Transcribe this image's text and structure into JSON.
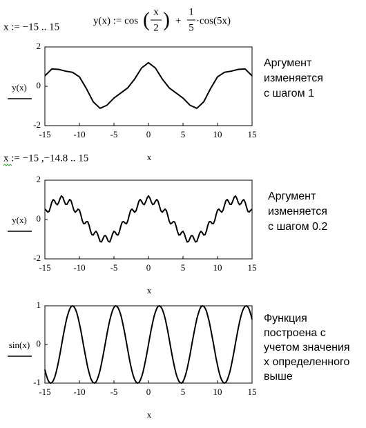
{
  "formulas": {
    "x_def1": "x := −15 .. 15",
    "y_def": {
      "left": "y(x) := cos",
      "frac1_num": "x",
      "frac1_den": "2",
      "plus": "+",
      "frac2_num": "1",
      "frac2_den": "5",
      "right": "·cos(5x)"
    },
    "x_def2": "x := −15 ,−14.8 .. 15"
  },
  "chart_data": [
    {
      "type": "line",
      "y_label": "y(x)",
      "x_label": "x",
      "color": "#000000",
      "annotation": [
        "Аргумент",
        "изменяется",
        "с шагом 1"
      ],
      "x": [
        -15,
        -14,
        -13,
        -12,
        -11,
        -10,
        -9,
        -8,
        -7,
        -6,
        -5,
        -4,
        -3,
        -2,
        -1,
        0,
        1,
        2,
        3,
        4,
        5,
        6,
        7,
        8,
        9,
        10,
        11,
        12,
        13,
        14,
        15
      ],
      "values": [
        0.53,
        0.88,
        0.86,
        0.77,
        0.71,
        0.48,
        -0.11,
        -0.79,
        -1.12,
        -0.96,
        -0.6,
        -0.34,
        -0.08,
        0.37,
        0.93,
        1.2,
        0.93,
        0.37,
        -0.08,
        -0.34,
        -0.6,
        -0.96,
        -1.12,
        -0.79,
        -0.11,
        0.48,
        0.71,
        0.77,
        0.86,
        0.88,
        0.53
      ],
      "xlim": [
        -15,
        15
      ],
      "xticks": [
        -15,
        -10,
        -5,
        0,
        5,
        10,
        15
      ],
      "ylim": [
        -2,
        2
      ],
      "yticks": [
        -2,
        0,
        2
      ]
    },
    {
      "type": "line",
      "y_label": "y(x)",
      "x_label": "x",
      "color": "#000000",
      "annotation": [
        "Аргумент",
        "изменяется",
        "с шагом 0.2"
      ],
      "x": [
        -15,
        -14.8,
        -14.6,
        -14.4,
        -14.2,
        -14,
        -13.8,
        -13.6,
        -13.4,
        -13.2,
        -13,
        -12.8,
        -12.6,
        -12.4,
        -12.2,
        -12,
        -11.8,
        -11.6,
        -11.4,
        -11.2,
        -11,
        -10.8,
        -10.6,
        -10.4,
        -10.2,
        -10,
        -9.8,
        -9.6,
        -9.4,
        -9.2,
        -9,
        -8.8,
        -8.6,
        -8.4,
        -8.2,
        -8,
        -7.8,
        -7.6,
        -7.4,
        -7.2,
        -7,
        -6.8,
        -6.6,
        -6.4,
        -6.2,
        -6,
        -5.8,
        -5.6,
        -5.4,
        -5.2,
        -5,
        -4.8,
        -4.6,
        -4.4,
        -4.2,
        -4,
        -3.8,
        -3.6,
        -3.4,
        -3.2,
        -3,
        -2.8,
        -2.6,
        -2.4,
        -2.2,
        -2,
        -1.8,
        -1.6,
        -1.4,
        -1.2,
        -1,
        -0.8,
        -0.6,
        -0.4,
        -0.2,
        0,
        0.2,
        0.4,
        0.6,
        0.8,
        1,
        1.2,
        1.4,
        1.6,
        1.8,
        2,
        2.2,
        2.4,
        2.6,
        2.8,
        3,
        3.2,
        3.4,
        3.6,
        3.8,
        4,
        4.2,
        4.4,
        4.6,
        4.8,
        5,
        5.2,
        5.4,
        5.6,
        5.8,
        6,
        6.2,
        6.4,
        6.6,
        6.8,
        7,
        7.2,
        7.4,
        7.6,
        7.8,
        8,
        8.2,
        8.4,
        8.6,
        8.8,
        9,
        9.2,
        9.4,
        9.6,
        9.8,
        10,
        10.2,
        10.4,
        10.6,
        10.8,
        11,
        11.2,
        11.4,
        11.6,
        11.8,
        12,
        12.2,
        12.4,
        12.6,
        12.8,
        13,
        13.2,
        13.4,
        13.6,
        13.8,
        14,
        14.2,
        14.4,
        14.6,
        14.8,
        15
      ],
      "values": [
        0.53,
        0.47,
        0.38,
        0.41,
        0.62,
        0.88,
        1.01,
        0.96,
        0.81,
        0.75,
        0.86,
        1.07,
        1.2,
        1.13,
        0.93,
        0.77,
        0.77,
        0.91,
        1.02,
        0.95,
        0.71,
        0.47,
        0.37,
        0.44,
        0.53,
        0.48,
        0.25,
        -0.04,
        -0.21,
        -0.2,
        -0.11,
        -0.11,
        -0.29,
        -0.57,
        -0.77,
        -0.79,
        -0.67,
        -0.6,
        -0.7,
        -0.92,
        -1.12,
        -1.14,
        -0.99,
        -0.83,
        -0.82,
        -0.96,
        -1.12,
        -1.14,
        -0.96,
        -0.73,
        -0.6,
        -0.65,
        -0.77,
        -0.79,
        -0.61,
        -0.33,
        -0.13,
        -0.1,
        -0.18,
        -0.22,
        -0.08,
        0.2,
        0.45,
        0.53,
        0.46,
        0.37,
        0.44,
        0.67,
        0.92,
        1.02,
        0.93,
        0.79,
        0.76,
        0.9,
        1.1,
        1.2,
        1.1,
        0.9,
        0.76,
        0.79,
        0.93,
        1.02,
        0.92,
        0.67,
        0.44,
        0.37,
        0.46,
        0.53,
        0.45,
        0.2,
        -0.08,
        -0.22,
        -0.18,
        -0.1,
        -0.13,
        -0.33,
        -0.61,
        -0.79,
        -0.77,
        -0.65,
        -0.6,
        -0.73,
        -0.96,
        -1.14,
        -1.12,
        -0.96,
        -0.82,
        -0.83,
        -0.99,
        -1.14,
        -1.12,
        -0.92,
        -0.7,
        -0.6,
        -0.67,
        -0.79,
        -0.77,
        -0.57,
        -0.29,
        -0.11,
        -0.11,
        -0.2,
        -0.21,
        -0.04,
        0.25,
        0.48,
        0.53,
        0.44,
        0.37,
        0.47,
        0.71,
        0.95,
        1.02,
        0.91,
        0.77,
        0.77,
        0.93,
        1.13,
        1.2,
        1.07,
        0.86,
        0.75,
        0.81,
        0.96,
        1.01,
        0.88,
        0.62,
        0.41,
        0.38,
        0.47,
        0.53
      ],
      "xlim": [
        -15,
        15
      ],
      "xticks": [
        -15,
        -10,
        -5,
        0,
        5,
        10,
        15
      ],
      "ylim": [
        -2,
        2
      ],
      "yticks": [
        -2,
        0,
        2
      ]
    },
    {
      "type": "line",
      "y_label": "sin(x)",
      "x_label": "x",
      "color": "#000000",
      "annotation": [
        "Функция",
        "построена с",
        "учетом значения",
        "х определенного",
        "выше"
      ],
      "x": [
        -15,
        -14.8,
        -14.6,
        -14.4,
        -14.2,
        -14,
        -13.8,
        -13.6,
        -13.4,
        -13.2,
        -13,
        -12.8,
        -12.6,
        -12.4,
        -12.2,
        -12,
        -11.8,
        -11.6,
        -11.4,
        -11.2,
        -11,
        -10.8,
        -10.6,
        -10.4,
        -10.2,
        -10,
        -9.8,
        -9.6,
        -9.4,
        -9.2,
        -9,
        -8.8,
        -8.6,
        -8.4,
        -8.2,
        -8,
        -7.8,
        -7.6,
        -7.4,
        -7.2,
        -7,
        -6.8,
        -6.6,
        -6.4,
        -6.2,
        -6,
        -5.8,
        -5.6,
        -5.4,
        -5.2,
        -5,
        -4.8,
        -4.6,
        -4.4,
        -4.2,
        -4,
        -3.8,
        -3.6,
        -3.4,
        -3.2,
        -3,
        -2.8,
        -2.6,
        -2.4,
        -2.2,
        -2,
        -1.8,
        -1.6,
        -1.4,
        -1.2,
        -1,
        -0.8,
        -0.6,
        -0.4,
        -0.2,
        0,
        0.2,
        0.4,
        0.6,
        0.8,
        1,
        1.2,
        1.4,
        1.6,
        1.8,
        2,
        2.2,
        2.4,
        2.6,
        2.8,
        3,
        3.2,
        3.4,
        3.6,
        3.8,
        4,
        4.2,
        4.4,
        4.6,
        4.8,
        5,
        5.2,
        5.4,
        5.6,
        5.8,
        6,
        6.2,
        6.4,
        6.6,
        6.8,
        7,
        7.2,
        7.4,
        7.6,
        7.8,
        8,
        8.2,
        8.4,
        8.6,
        8.8,
        9,
        9.2,
        9.4,
        9.6,
        9.8,
        10,
        10.2,
        10.4,
        10.6,
        10.8,
        11,
        11.2,
        11.4,
        11.6,
        11.8,
        12,
        12.2,
        12.4,
        12.6,
        12.8,
        13,
        13.2,
        13.4,
        13.6,
        13.8,
        14,
        14.2,
        14.4,
        14.6,
        14.8,
        15
      ],
      "values": [
        -0.65,
        -0.79,
        -0.9,
        -0.97,
        -1,
        -0.99,
        -0.94,
        -0.86,
        -0.74,
        -0.59,
        -0.42,
        -0.23,
        -0.03,
        0.17,
        0.36,
        0.54,
        0.7,
        0.82,
        0.92,
        0.98,
        1,
        0.98,
        0.92,
        0.83,
        0.7,
        0.54,
        0.37,
        0.17,
        -0.03,
        -0.22,
        -0.41,
        -0.59,
        -0.73,
        -0.86,
        -0.94,
        -0.99,
        -1,
        -0.97,
        -0.9,
        -0.79,
        -0.66,
        -0.49,
        -0.31,
        -0.12,
        0.08,
        0.28,
        0.46,
        0.63,
        0.77,
        0.88,
        0.96,
        1,
        0.99,
        0.95,
        0.87,
        0.76,
        0.61,
        0.44,
        0.26,
        0.06,
        -0.14,
        -0.34,
        -0.52,
        -0.68,
        -0.81,
        -0.91,
        -0.97,
        -1,
        -0.99,
        -0.93,
        -0.84,
        -0.72,
        -0.56,
        -0.39,
        -0.2,
        0,
        0.2,
        0.39,
        0.56,
        0.72,
        0.84,
        0.93,
        0.99,
        1,
        0.97,
        0.91,
        0.81,
        0.68,
        0.52,
        0.34,
        0.14,
        -0.06,
        -0.26,
        -0.44,
        -0.61,
        -0.76,
        -0.87,
        -0.95,
        -0.99,
        -1,
        -0.96,
        -0.88,
        -0.77,
        -0.63,
        -0.46,
        -0.28,
        -0.08,
        0.12,
        0.31,
        0.49,
        0.66,
        0.79,
        0.9,
        0.97,
        1,
        0.99,
        0.94,
        0.86,
        0.73,
        0.59,
        0.41,
        0.22,
        0.03,
        -0.17,
        -0.37,
        -0.54,
        -0.7,
        -0.83,
        -0.92,
        -0.98,
        -1,
        -0.98,
        -0.92,
        -0.82,
        -0.7,
        -0.54,
        -0.36,
        -0.17,
        0.03,
        0.23,
        0.42,
        0.59,
        0.74,
        0.86,
        0.94,
        0.99,
        1,
        0.97,
        0.9,
        0.79,
        0.65
      ],
      "xlim": [
        -15,
        15
      ],
      "xticks": [
        -15,
        -10,
        -5,
        0,
        5,
        10,
        15
      ],
      "ylim": [
        -1,
        1
      ],
      "yticks": [
        -1,
        0,
        1
      ]
    }
  ]
}
